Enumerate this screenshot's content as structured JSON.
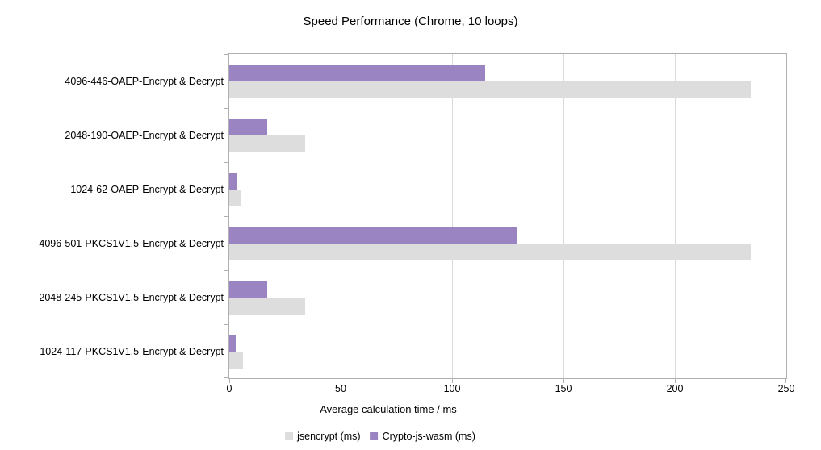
{
  "title": "Speed Performance (Chrome, 10 loops)",
  "chart_data": {
    "type": "bar",
    "orientation": "horizontal",
    "title": "Speed Performance (Chrome, 10 loops)",
    "categories": [
      "4096-446-OAEP-Encrypt & Decrypt",
      "2048-190-OAEP-Encrypt & Decrypt",
      "1024-62-OAEP-Encrypt & Decrypt",
      "4096-501-PKCS1V1.5-Encrypt & Decrypt",
      "2048-245-PKCS1V1.5-Encrypt & Decrypt",
      "1024-117-PKCS1V1.5-Encrypt & Decrypt"
    ],
    "series": [
      {
        "name": "jsencrypt (ms)",
        "color": "#dddddd",
        "values": [
          234,
          34,
          5.5,
          234,
          34,
          6
        ]
      },
      {
        "name": "Crypto-js-wasm (ms)",
        "color": "#9a84c2",
        "values": [
          115,
          17,
          3.5,
          129,
          17,
          3
        ]
      }
    ],
    "xlabel": "Average calculation time / ms",
    "xlim": [
      0,
      250
    ],
    "xticks": [
      0,
      50,
      100,
      150,
      200,
      250
    ],
    "grid": "vertical",
    "legend_position": "bottom"
  },
  "colors": {
    "background": "#ffffff",
    "text": "#000000",
    "axis_line": "#b0b0b0",
    "gridline": "#d9d9d9",
    "series_jsencrypt": "#dddddd",
    "series_crypto_js_wasm": "#9a84c2"
  }
}
